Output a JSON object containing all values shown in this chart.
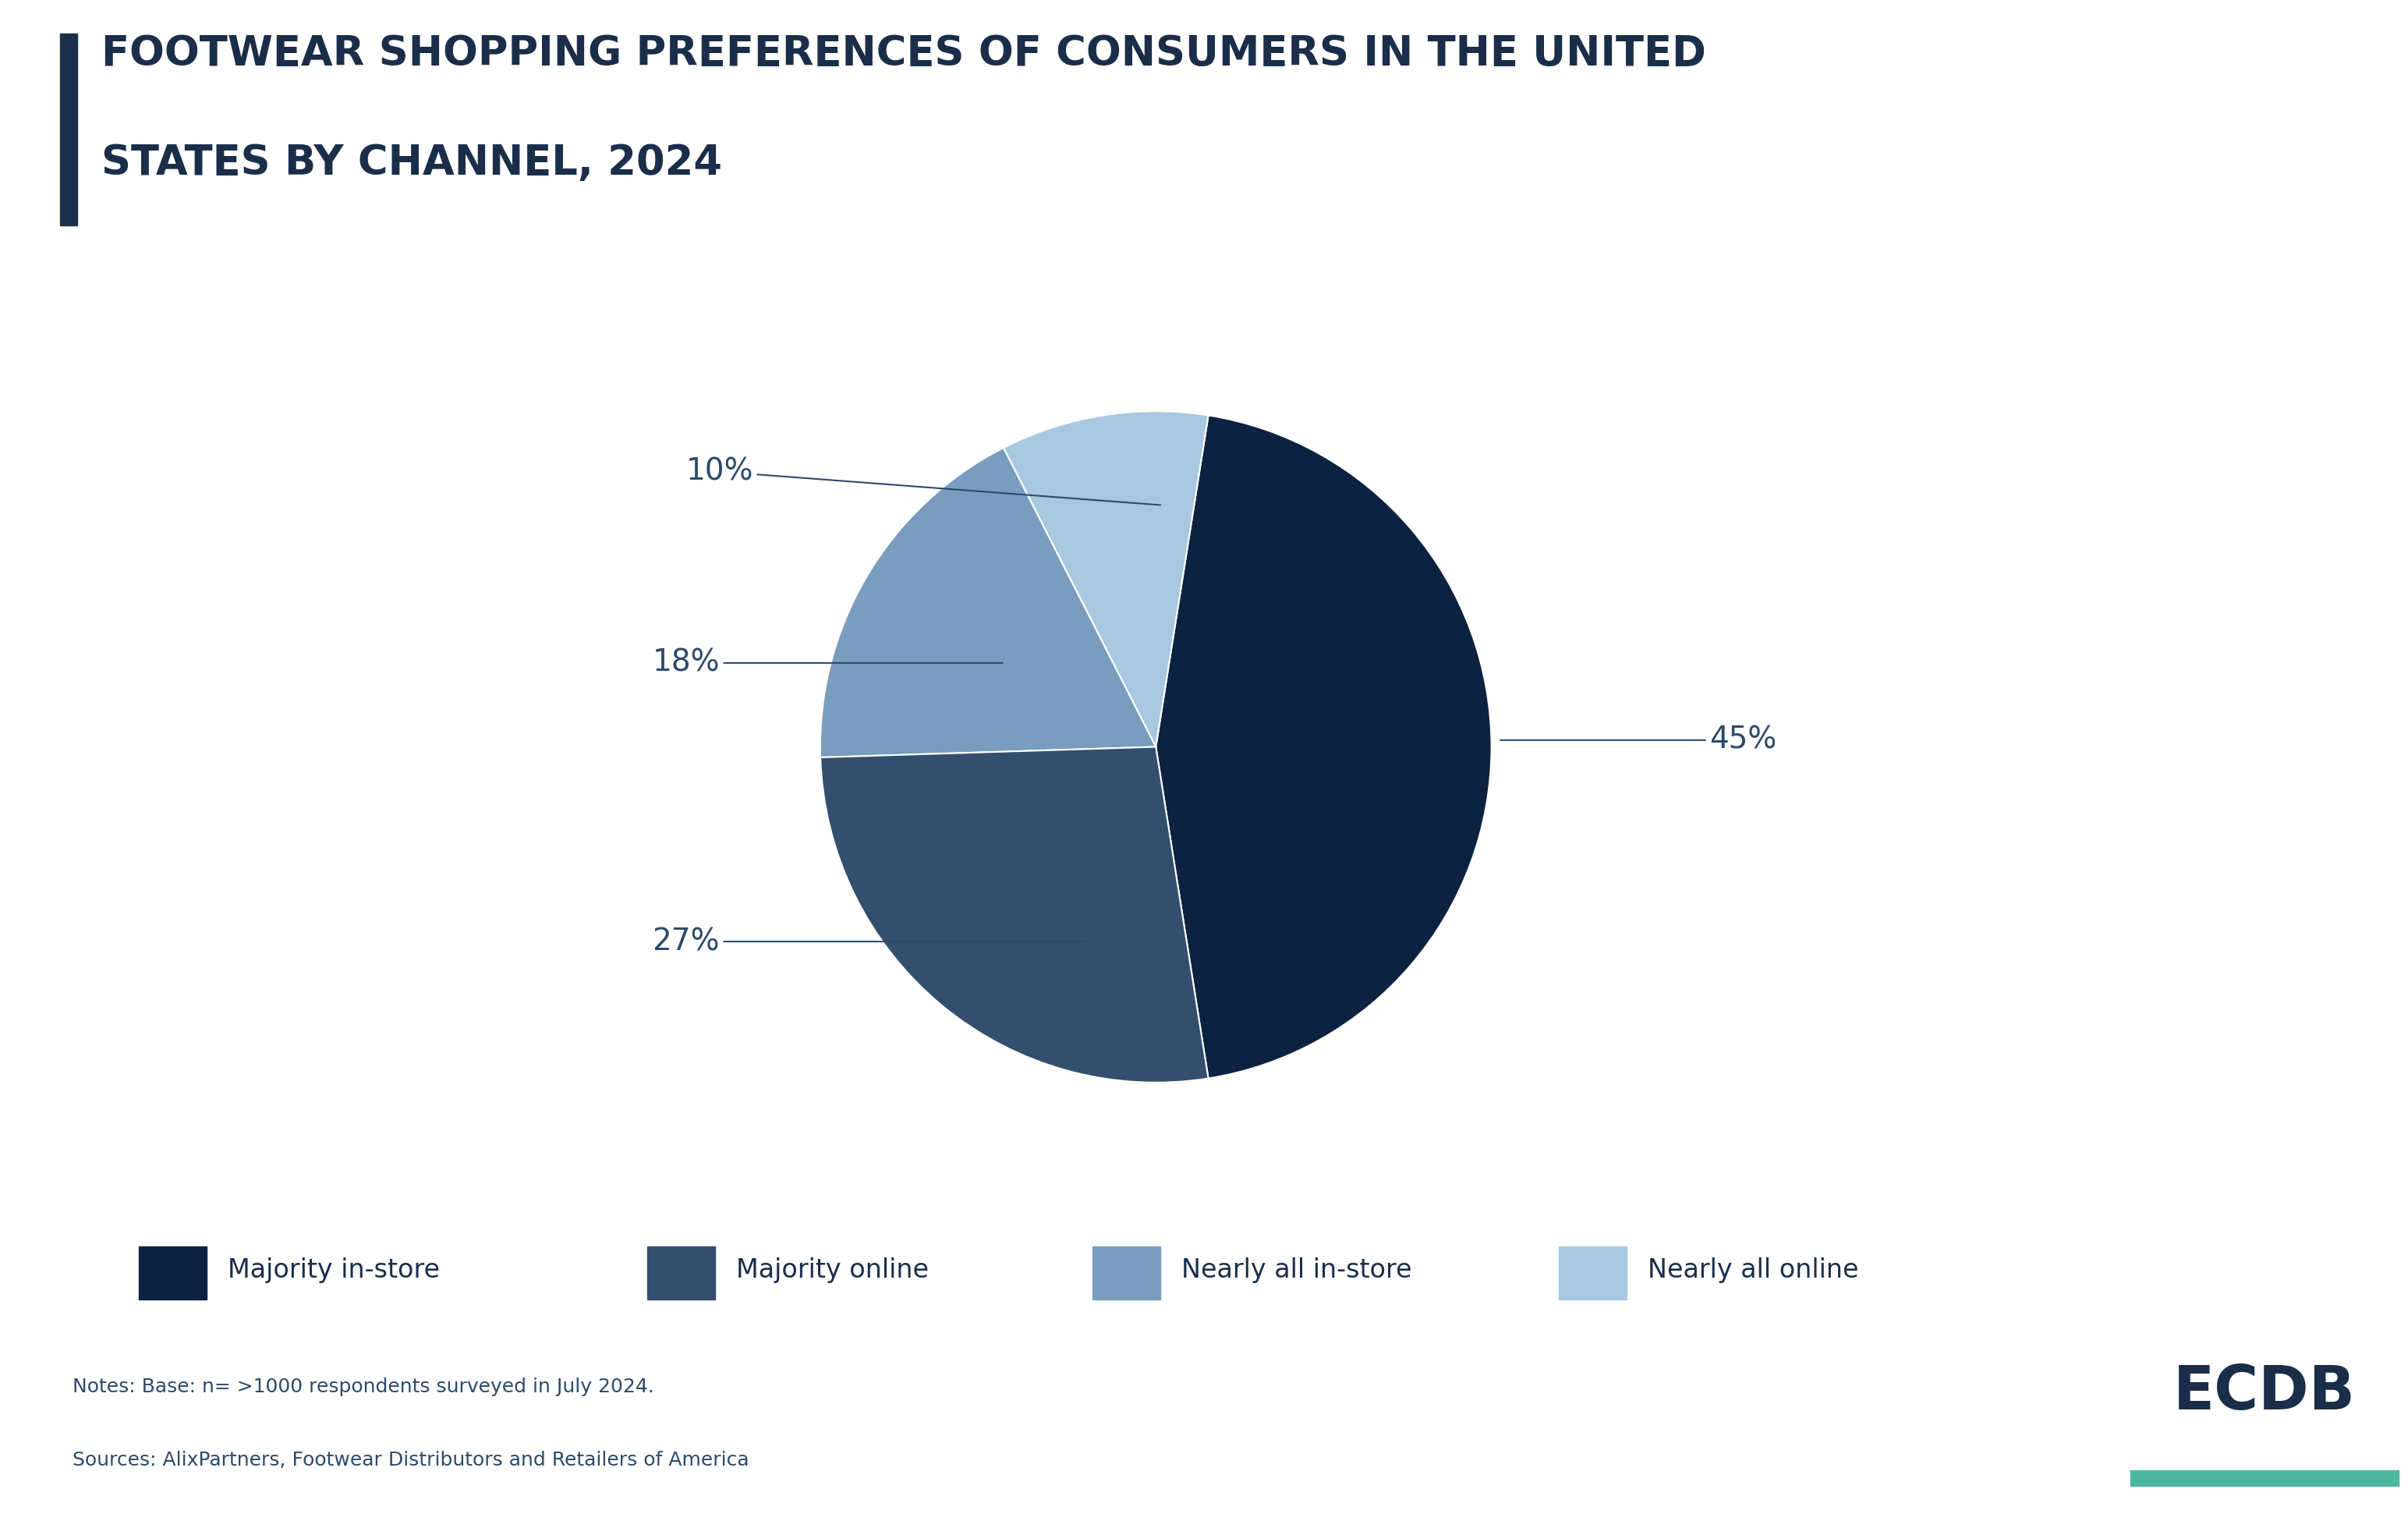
{
  "title_line1": "FOOTWEAR SHOPPING PREFERENCES OF CONSUMERS IN THE UNITED",
  "title_line2": "STATES BY CHANNEL, 2024",
  "title_color": "#1a2e4a",
  "title_bar_color": "#1a2e4a",
  "slice_colors": [
    "#0d2240",
    "#344f6e",
    "#7a9dbf",
    "#a8c8e0"
  ],
  "legend_labels": [
    "Majority in-store",
    "Majority online",
    "Nearly all in-store",
    "Nearly all online"
  ],
  "note_line1": "Notes: Base: n= >1000 respondents surveyed in July 2024.",
  "note_line2": "Sources: AlixPartners, Footwear Distributors and Retailers of America",
  "note_color": "#2d4a6b",
  "ecdb_color": "#1a2e4a",
  "ecdb_underline_color": "#4db8a0",
  "background_color": "#ffffff",
  "label_color": "#2d4a6b",
  "label_fontsize": 28,
  "legend_fontsize": 24,
  "title_fontsize": 38,
  "note_fontsize": 18
}
